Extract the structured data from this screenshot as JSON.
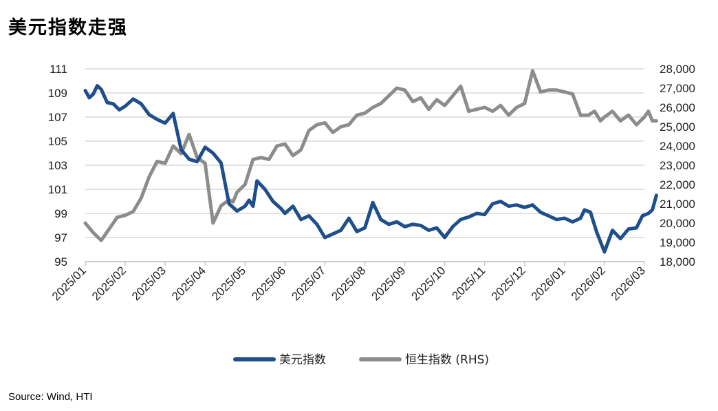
{
  "title": "美元指数走强",
  "source": "Source: Wind, HTI",
  "chart_data": {
    "type": "line",
    "grid": "horizontal",
    "legend_position": "bottom",
    "left_axis": {
      "ylim": [
        95,
        111
      ],
      "ticks": [
        "95",
        "97",
        "99",
        "101",
        "103",
        "105",
        "107",
        "109",
        "111"
      ]
    },
    "right_axis": {
      "ylim": [
        18000,
        28000
      ],
      "ticks": [
        "18,000",
        "19,000",
        "20,000",
        "21,000",
        "22,000",
        "23,000",
        "24,000",
        "25,000",
        "26,000",
        "27,000",
        "28,000"
      ]
    },
    "x_ticks": [
      "2025/01",
      "2025/02",
      "2025/03",
      "2025/04",
      "2025/05",
      "2025/06",
      "2025/07",
      "2025/08",
      "2025/09",
      "2025/10",
      "2025/11",
      "2025/12",
      "2026/01",
      "2026/02",
      "2026/03"
    ],
    "series": [
      {
        "name": "美元指数",
        "axis": "left",
        "color": "#1F4E8C",
        "x": [
          0,
          0.1,
          0.2,
          0.3,
          0.4,
          0.55,
          0.7,
          0.85,
          1.0,
          1.2,
          1.4,
          1.6,
          1.8,
          2.0,
          2.2,
          2.4,
          2.6,
          2.8,
          3.0,
          3.2,
          3.4,
          3.6,
          3.8,
          4.0,
          4.1,
          4.2,
          4.3,
          4.5,
          4.7,
          4.9,
          5.0,
          5.2,
          5.4,
          5.6,
          5.8,
          6.0,
          6.2,
          6.4,
          6.6,
          6.8,
          7.0,
          7.2,
          7.4,
          7.6,
          7.8,
          8.0,
          8.2,
          8.4,
          8.6,
          8.8,
          9.0,
          9.2,
          9.4,
          9.6,
          9.8,
          10.0,
          10.2,
          10.4,
          10.6,
          10.8,
          11.0,
          11.2,
          11.4,
          11.6,
          11.8,
          12.0,
          12.2,
          12.4,
          12.5,
          12.65,
          12.8,
          13.0,
          13.2,
          13.4,
          13.6,
          13.8,
          13.95,
          14.1,
          14.2,
          14.3
        ],
        "values": [
          109.2,
          108.6,
          108.9,
          109.6,
          109.3,
          108.2,
          108.1,
          107.6,
          107.9,
          108.5,
          108.1,
          107.2,
          106.8,
          106.5,
          107.3,
          104.3,
          103.5,
          103.3,
          104.5,
          104.0,
          103.2,
          99.8,
          99.2,
          99.6,
          100.1,
          99.6,
          101.7,
          101.0,
          100.0,
          99.4,
          99.0,
          99.6,
          98.5,
          98.8,
          98.1,
          97.0,
          97.3,
          97.6,
          98.6,
          97.5,
          97.8,
          99.9,
          98.5,
          98.1,
          98.3,
          97.9,
          98.1,
          98.0,
          97.6,
          97.8,
          97.0,
          97.9,
          98.5,
          98.7,
          99.0,
          98.9,
          99.8,
          100.0,
          99.6,
          99.7,
          99.5,
          99.7,
          99.1,
          98.8,
          98.5,
          98.6,
          98.3,
          98.6,
          99.3,
          99.1,
          97.5,
          95.8,
          97.6,
          96.9,
          97.7,
          97.8,
          98.8,
          99.0,
          99.3,
          100.5
        ]
      },
      {
        "name": "恒生指数 (RHS)",
        "axis": "right",
        "color": "#8C8C8C",
        "x": [
          0,
          0.2,
          0.4,
          0.6,
          0.8,
          1.0,
          1.2,
          1.4,
          1.6,
          1.8,
          2.0,
          2.2,
          2.4,
          2.6,
          2.8,
          3.0,
          3.2,
          3.4,
          3.6,
          3.7,
          3.8,
          3.9,
          4.0,
          4.2,
          4.4,
          4.6,
          4.8,
          5.0,
          5.2,
          5.4,
          5.6,
          5.8,
          6.0,
          6.2,
          6.4,
          6.6,
          6.8,
          7.0,
          7.2,
          7.4,
          7.6,
          7.8,
          8.0,
          8.2,
          8.4,
          8.6,
          8.8,
          9.0,
          9.2,
          9.4,
          9.6,
          9.8,
          10.0,
          10.2,
          10.4,
          10.6,
          10.8,
          11.0,
          11.2,
          11.4,
          11.6,
          11.8,
          12.0,
          12.2,
          12.4,
          12.6,
          12.75,
          12.9,
          13.0,
          13.2,
          13.4,
          13.6,
          13.8,
          14.0,
          14.1,
          14.2,
          14.3
        ],
        "values": [
          20000,
          19500,
          19100,
          19700,
          20300,
          20400,
          20600,
          21300,
          22400,
          23200,
          23100,
          24000,
          23600,
          24600,
          23400,
          23100,
          20000,
          20900,
          21200,
          21100,
          21600,
          21800,
          22000,
          23300,
          23400,
          23300,
          24000,
          24100,
          23500,
          23800,
          24800,
          25100,
          25200,
          24700,
          25000,
          25100,
          25600,
          25700,
          26000,
          26200,
          26600,
          27000,
          26900,
          26300,
          26500,
          25900,
          26400,
          26100,
          26600,
          27100,
          25800,
          25900,
          26000,
          25800,
          26100,
          25600,
          26000,
          26200,
          27900,
          26800,
          26900,
          26900,
          26800,
          26700,
          25600,
          25600,
          25800,
          25300,
          25500,
          25800,
          25300,
          25600,
          25100,
          25500,
          25800,
          25300,
          25300
        ]
      }
    ]
  }
}
